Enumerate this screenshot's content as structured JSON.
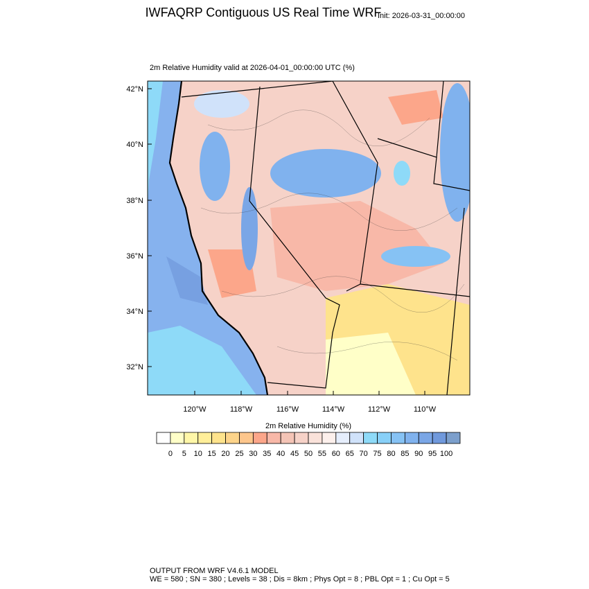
{
  "header": {
    "title": "IWFAQRP Contiguous US Real Time WRF",
    "init": "Init: 2026-03-31_00:00:00",
    "subtitle": "2m Relative Humidity valid at 2026-04-01_00:00:00 UTC   (%)"
  },
  "map": {
    "lat_labels": [
      "42°N",
      "40°N",
      "38°N",
      "36°N",
      "34°N",
      "32°N"
    ],
    "lon_labels": [
      "120°W",
      "118°W",
      "116°W",
      "114°W",
      "112°W",
      "110°W"
    ]
  },
  "colorbar": {
    "title": "2m Relative Humidity  (%)",
    "levels": [
      0,
      5,
      10,
      15,
      20,
      25,
      30,
      35,
      40,
      45,
      50,
      55,
      60,
      65,
      70,
      75,
      80,
      85,
      90,
      95,
      100
    ],
    "colors": [
      "#ffffff",
      "#ffffc8",
      "#fff7a8",
      "#ffee99",
      "#fee38c",
      "#fdd48a",
      "#fdc68c",
      "#fca68a",
      "#f8b8a8",
      "#f4c4b6",
      "#f6d2c8",
      "#fae2da",
      "#fdf0ec",
      "#e6eefc",
      "#d0e2fa",
      "#8edaf8",
      "#88d0f8",
      "#86c2f4",
      "#80b2ee",
      "#7aa6e6",
      "#7099dc",
      "#7c9fcc"
    ]
  },
  "footer": {
    "line1": "OUTPUT FROM WRF V4.6.1 MODEL",
    "line2": "WE = 580 ; SN = 380 ; Levels = 38 ; Dis = 8km ; Phys Opt = 8 ; PBL Opt = 1 ; Cu Opt = 5"
  }
}
